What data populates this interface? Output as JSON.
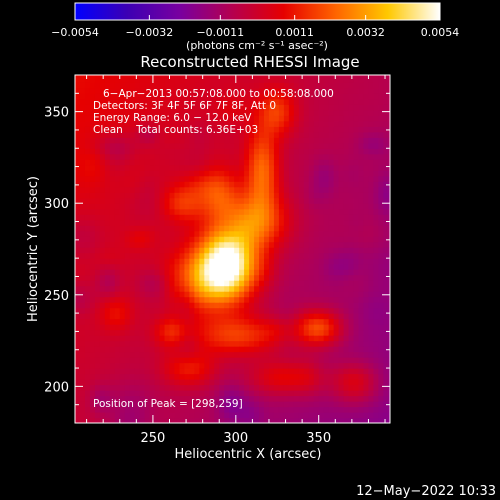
{
  "colorbar": {
    "tick_labels": [
      "−0.0054",
      "−0.0032",
      "−0.0011",
      "0.0011",
      "0.0032",
      "0.0054"
    ],
    "tick_values": [
      -0.0054,
      -0.0032,
      -0.0011,
      0.0011,
      0.0032,
      0.0054
    ],
    "range": [
      -0.0054,
      0.0054
    ],
    "unit_label": "(photons cm⁻² s⁻¹ asec⁻²)",
    "colors": [
      "#0000ff",
      "#3c00b4",
      "#7800a0",
      "#b40050",
      "#e60000",
      "#ff6400",
      "#ffc800",
      "#ffffff"
    ]
  },
  "chart_data": {
    "type": "heatmap",
    "title": "Reconstructed RHESSI Image",
    "xlabel": "Heliocentric X (arcsec)",
    "ylabel": "Heliocentric Y (arcsec)",
    "xlim": [
      203,
      393
    ],
    "ylim": [
      180,
      370
    ],
    "xticks": [
      250,
      300,
      350
    ],
    "yticks": [
      200,
      250,
      300,
      350
    ],
    "annotations": {
      "time_range": "6−Apr−2013 00:57:08.000 to 00:58:08.000",
      "detectors": "Detectors: 3F 4F 5F 6F 7F 8F, Att 0",
      "energy_range": "Energy Range: 6.0 − 12.0 keV",
      "clean_counts": "Clean    Total counts: 6.36E+03",
      "peak": "Position of Peak = [298,259]"
    },
    "peak": [
      298,
      259
    ],
    "sources": [
      {
        "x": 295,
        "y": 268,
        "sx": 12,
        "sy": 13,
        "a": 1.0
      },
      {
        "x": 282,
        "y": 258,
        "sx": 16,
        "sy": 12,
        "a": 0.55
      },
      {
        "x": 312,
        "y": 290,
        "sx": 14,
        "sy": 11,
        "a": 0.5
      },
      {
        "x": 316,
        "y": 318,
        "sx": 7,
        "sy": 16,
        "a": 0.5
      },
      {
        "x": 290,
        "y": 305,
        "sx": 9,
        "sy": 10,
        "a": 0.35
      },
      {
        "x": 268,
        "y": 300,
        "sx": 9,
        "sy": 7,
        "a": 0.3
      },
      {
        "x": 302,
        "y": 228,
        "sx": 20,
        "sy": 8,
        "a": 0.45
      },
      {
        "x": 350,
        "y": 232,
        "sx": 10,
        "sy": 7,
        "a": 0.55
      },
      {
        "x": 330,
        "y": 205,
        "sx": 16,
        "sy": 7,
        "a": 0.35
      },
      {
        "x": 272,
        "y": 210,
        "sx": 11,
        "sy": 7,
        "a": 0.35
      },
      {
        "x": 372,
        "y": 202,
        "sx": 10,
        "sy": 8,
        "a": 0.35
      },
      {
        "x": 325,
        "y": 350,
        "sx": 8,
        "sy": 9,
        "a": 0.35
      },
      {
        "x": 262,
        "y": 230,
        "sx": 8,
        "sy": 6,
        "a": 0.3
      },
      {
        "x": 228,
        "y": 240,
        "sx": 7,
        "sy": 7,
        "a": 0.2
      }
    ]
  },
  "footer": {
    "timestamp": "12−May−2022 10:33"
  }
}
